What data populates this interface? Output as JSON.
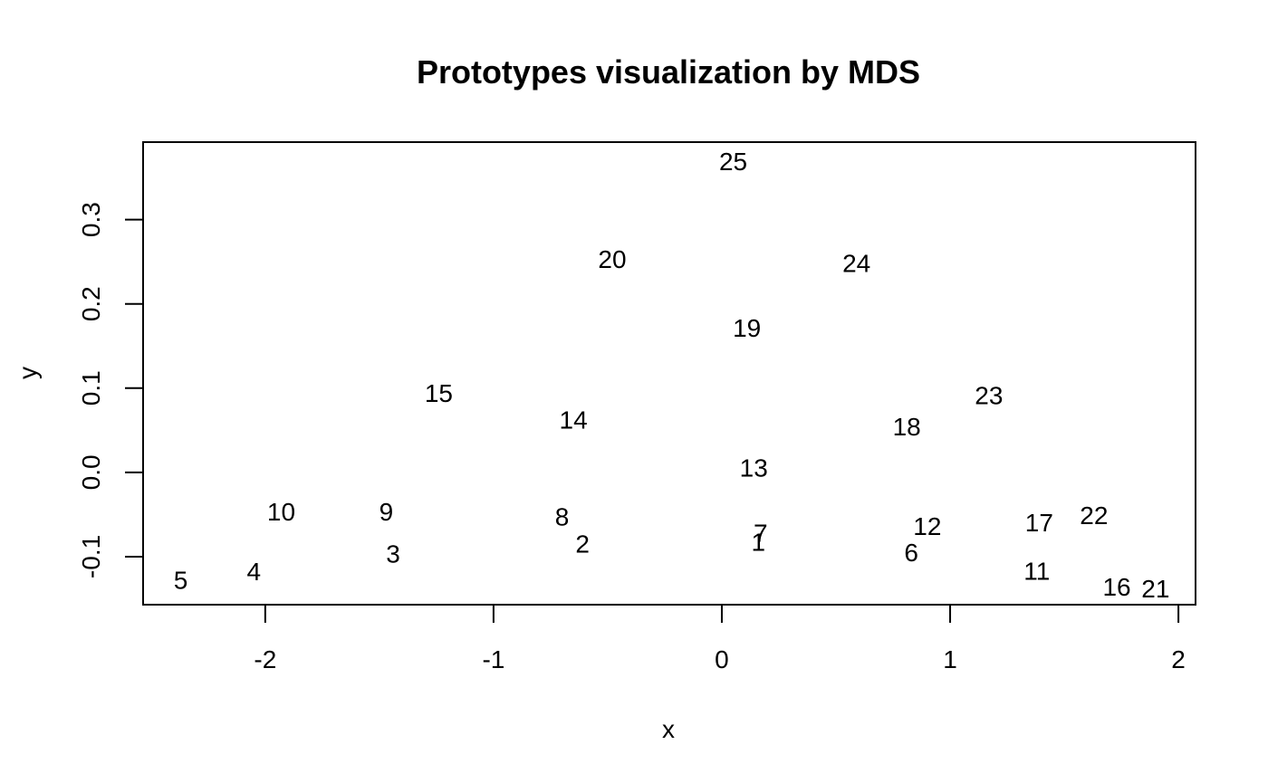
{
  "chart_data": {
    "type": "scatter",
    "title": "Prototypes visualization by MDS",
    "xlabel": "x",
    "ylabel": "y",
    "xlim": [
      -2.535,
      2.075
    ],
    "ylim": [
      -0.157,
      0.392
    ],
    "x_ticks": [
      {
        "value": -2,
        "label": "-2"
      },
      {
        "value": -1,
        "label": "-1"
      },
      {
        "value": 0,
        "label": "0"
      },
      {
        "value": 1,
        "label": "1"
      },
      {
        "value": 2,
        "label": "2"
      }
    ],
    "y_ticks": [
      {
        "value": -0.1,
        "label": "-0.1"
      },
      {
        "value": 0.0,
        "label": "0.0"
      },
      {
        "value": 0.1,
        "label": "0.1"
      },
      {
        "value": 0.2,
        "label": "0.2"
      },
      {
        "value": 0.3,
        "label": "0.3"
      }
    ],
    "grid": false,
    "legend": "none",
    "points": [
      {
        "label": "1",
        "x": 0.16,
        "y": -0.083
      },
      {
        "label": "2",
        "x": -0.61,
        "y": -0.085
      },
      {
        "label": "3",
        "x": -1.44,
        "y": -0.097
      },
      {
        "label": "4",
        "x": -2.05,
        "y": -0.118
      },
      {
        "label": "5",
        "x": -2.37,
        "y": -0.128
      },
      {
        "label": "6",
        "x": 0.83,
        "y": -0.095
      },
      {
        "label": "7",
        "x": 0.17,
        "y": -0.072
      },
      {
        "label": "8",
        "x": -0.7,
        "y": -0.053
      },
      {
        "label": "9",
        "x": -1.47,
        "y": -0.047
      },
      {
        "label": "10",
        "x": -1.93,
        "y": -0.047
      },
      {
        "label": "11",
        "x": 1.38,
        "y": -0.117
      },
      {
        "label": "12",
        "x": 0.9,
        "y": -0.064
      },
      {
        "label": "13",
        "x": 0.14,
        "y": 0.005
      },
      {
        "label": "14",
        "x": -0.65,
        "y": 0.062
      },
      {
        "label": "15",
        "x": -1.24,
        "y": 0.094
      },
      {
        "label": "16",
        "x": 1.73,
        "y": -0.136
      },
      {
        "label": "17",
        "x": 1.39,
        "y": -0.06
      },
      {
        "label": "18",
        "x": 0.81,
        "y": 0.054
      },
      {
        "label": "19",
        "x": 0.11,
        "y": 0.171
      },
      {
        "label": "20",
        "x": -0.48,
        "y": 0.253
      },
      {
        "label": "21",
        "x": 1.9,
        "y": -0.138
      },
      {
        "label": "22",
        "x": 1.63,
        "y": -0.051
      },
      {
        "label": "23",
        "x": 1.17,
        "y": 0.091
      },
      {
        "label": "24",
        "x": 0.59,
        "y": 0.248
      },
      {
        "label": "25",
        "x": 0.05,
        "y": 0.369
      }
    ]
  }
}
